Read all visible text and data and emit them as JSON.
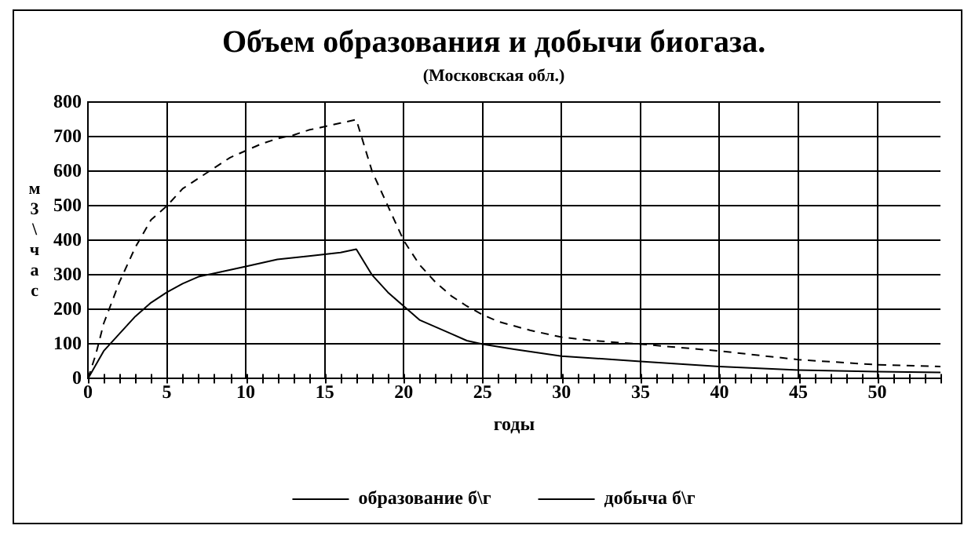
{
  "chart_data": {
    "type": "line",
    "title": "Объем образования и добычи биогаза.",
    "subtitle": "(Московская обл.)",
    "xlabel": "годы",
    "ylabel": "м3\\час",
    "xlim": [
      0,
      54
    ],
    "xticks": [
      0,
      5,
      10,
      15,
      20,
      25,
      30,
      35,
      40,
      45,
      50
    ],
    "ylim": [
      0,
      800
    ],
    "yticks": [
      0,
      100,
      200,
      300,
      400,
      500,
      600,
      700,
      800
    ],
    "grid": true,
    "legend": "bottom",
    "marker": "none",
    "series": [
      {
        "name": "образование б\\г",
        "color": "#000000",
        "line_style": "dashed",
        "x": [
          0,
          0.5,
          1,
          2,
          3,
          4,
          5,
          6,
          7,
          8,
          9,
          10,
          11,
          12,
          13,
          14,
          15,
          16,
          17,
          18,
          19,
          20,
          21,
          22,
          23,
          24,
          25,
          26,
          28,
          30,
          32,
          35,
          40,
          45,
          50,
          54
        ],
        "values": [
          0,
          70,
          160,
          280,
          380,
          460,
          500,
          550,
          580,
          610,
          640,
          660,
          680,
          695,
          705,
          720,
          730,
          740,
          750,
          600,
          500,
          400,
          330,
          280,
          240,
          210,
          185,
          165,
          140,
          120,
          110,
          100,
          80,
          55,
          40,
          35
        ]
      },
      {
        "name": "добыча б\\г",
        "color": "#000000",
        "line_style": "solid",
        "x": [
          0,
          1,
          2,
          3,
          4,
          5,
          6,
          7,
          8,
          10,
          12,
          14,
          16,
          17,
          18,
          19,
          20,
          21,
          22,
          23,
          24,
          25,
          27,
          30,
          35,
          40,
          45,
          50,
          54
        ],
        "values": [
          0,
          80,
          130,
          180,
          220,
          250,
          275,
          295,
          305,
          325,
          345,
          355,
          365,
          375,
          300,
          250,
          210,
          170,
          150,
          130,
          110,
          100,
          85,
          65,
          50,
          35,
          25,
          20,
          18
        ]
      }
    ]
  }
}
